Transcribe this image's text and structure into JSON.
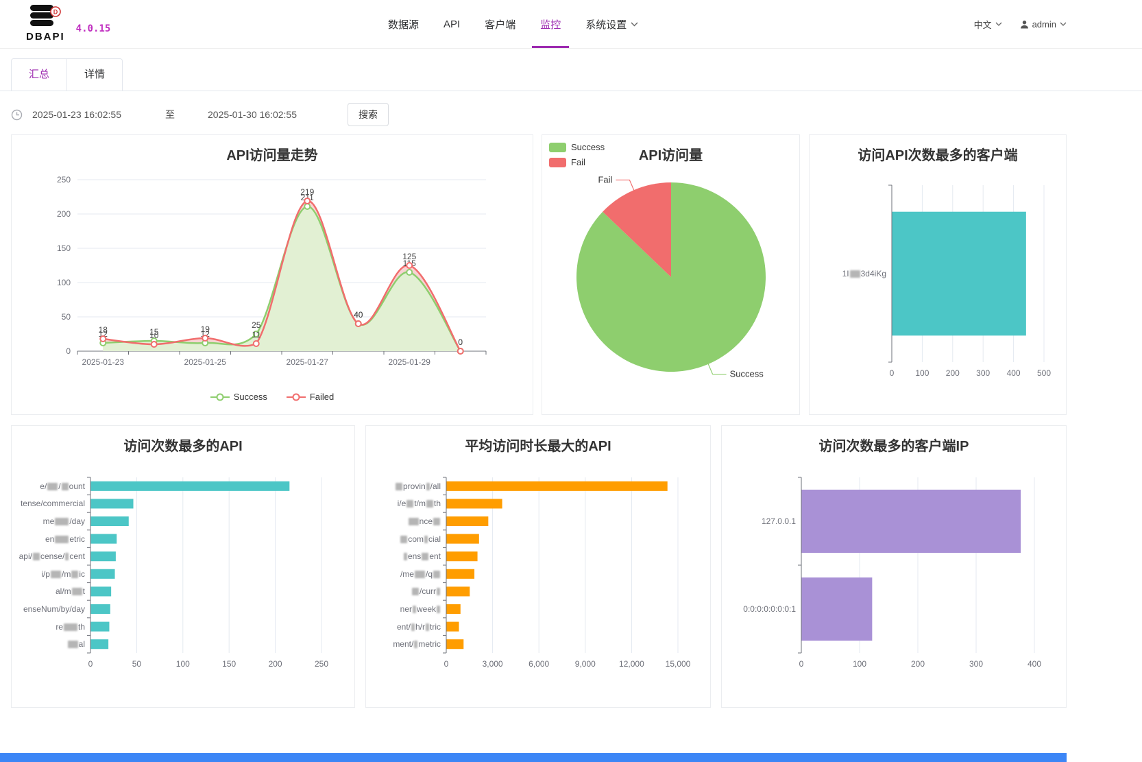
{
  "header": {
    "logo_text": "DBAPI",
    "version": "4.0.15",
    "nav": [
      {
        "label": "数据源"
      },
      {
        "label": "API"
      },
      {
        "label": "客户端"
      },
      {
        "label": "监控"
      },
      {
        "label": "系统设置"
      }
    ],
    "language": "中文",
    "username": "admin"
  },
  "tabs": [
    {
      "label": "汇总"
    },
    {
      "label": "详情"
    }
  ],
  "filter": {
    "start_date": "2025-01-23 16:02:55",
    "separator": "至",
    "end_date": "2025-01-30 16:02:55",
    "search_label": "搜索"
  },
  "colors": {
    "accent": "#9d2bb0",
    "version": "#c02ec0",
    "teal": "#4cc6c6",
    "orange": "#ff9d00",
    "purple": "#a991d6",
    "success_green": "#8ece6e",
    "fail_red": "#f16d6d",
    "bottom_bar": "#3c86f6"
  },
  "chart_data": [
    {
      "type": "line",
      "title": "API访问量走势",
      "x": [
        "2025-01-23",
        "2025-01-24",
        "2025-01-25",
        "2025-01-26",
        "2025-01-27",
        "2025-01-28",
        "2025-01-29",
        "2025-01-30"
      ],
      "x_tick_indices": [
        0,
        2,
        4,
        6
      ],
      "x_tick_labels": [
        "2025-01-23",
        "2025-01-25",
        "2025-01-27",
        "2025-01-29"
      ],
      "series": [
        {
          "name": "Success",
          "color": "#8ece6e",
          "area": "#e2f0d3",
          "values": [
            12,
            15,
            12,
            25,
            211,
            40,
            115,
            0
          ]
        },
        {
          "name": "Failed",
          "color": "#f16d6d",
          "area": "#f8d3d3",
          "values": [
            18,
            10,
            19,
            11,
            219,
            40,
            125,
            0
          ]
        }
      ],
      "ylim": [
        0,
        250
      ],
      "yticks": [
        0,
        50,
        100,
        150,
        200,
        250
      ],
      "legend": [
        "Success",
        "Failed"
      ],
      "grid": true,
      "legend_position": "bottom"
    },
    {
      "type": "pie",
      "title": "API访问量",
      "slices": [
        {
          "name": "Success",
          "value": 440,
          "color": "#8ece6e"
        },
        {
          "name": "Fail",
          "value": 65,
          "color": "#f16d6d"
        }
      ],
      "legend": [
        "Success",
        "Fail"
      ],
      "legend_position": "top-left"
    },
    {
      "type": "bar-h",
      "title": "访问API次数最多的客户端",
      "color": "#4cc6c6",
      "xmax": 500,
      "xticks": [
        {
          "v": 0,
          "label": "0"
        },
        {
          "v": 100,
          "label": "100"
        },
        {
          "v": 200,
          "label": "200"
        },
        {
          "v": 300,
          "label": "300"
        },
        {
          "v": 400,
          "label": "400"
        },
        {
          "v": 500,
          "label": "500"
        }
      ],
      "bars": [
        {
          "value": 440,
          "label": [
            {
              "t": "1I"
            },
            {
              "b": "xxx"
            },
            {
              "t": "3d4iKg"
            }
          ]
        }
      ]
    },
    {
      "type": "bar-h",
      "title": "访问次数最多的API",
      "color": "#4cc6c6",
      "xmax": 250,
      "xticks": [
        {
          "v": 0,
          "label": "0"
        },
        {
          "v": 50,
          "label": "50"
        },
        {
          "v": 100,
          "label": "100"
        },
        {
          "v": 150,
          "label": "150"
        },
        {
          "v": 200,
          "label": "200"
        },
        {
          "v": 250,
          "label": "250"
        }
      ],
      "bars": [
        {
          "value": 215,
          "label": [
            {
              "t": "e/"
            },
            {
              "b": "xxx"
            },
            {
              "t": "/"
            },
            {
              "b": "xx"
            },
            {
              "t": "ount"
            }
          ]
        },
        {
          "value": 46,
          "label": [
            {
              "t": "tense/commercial"
            }
          ]
        },
        {
          "value": 41,
          "label": [
            {
              "t": "me"
            },
            {
              "b": "xxxx"
            },
            {
              "t": "/day"
            }
          ]
        },
        {
          "value": 28,
          "label": [
            {
              "t": "en"
            },
            {
              "b": "xxxx"
            },
            {
              "t": "etric"
            }
          ]
        },
        {
          "value": 27,
          "label": [
            {
              "t": "api/"
            },
            {
              "b": "xx"
            },
            {
              "t": "cense/"
            },
            {
              "b": "x"
            },
            {
              "t": "cent"
            }
          ]
        },
        {
          "value": 26,
          "label": [
            {
              "t": "i/p"
            },
            {
              "b": "xxx"
            },
            {
              "t": "/m"
            },
            {
              "b": "xx"
            },
            {
              "t": "ic"
            }
          ]
        },
        {
          "value": 22,
          "label": [
            {
              "t": "al/m"
            },
            {
              "b": "xxx"
            },
            {
              "t": "t"
            }
          ]
        },
        {
          "value": 21,
          "label": [
            {
              "t": "enseNum/by/day"
            }
          ]
        },
        {
          "value": 20,
          "label": [
            {
              "t": "re"
            },
            {
              "b": "xxxx"
            },
            {
              "t": "th"
            }
          ]
        },
        {
          "value": 19,
          "label": [
            {
              "b": "xxx"
            },
            {
              "t": "al"
            }
          ]
        }
      ]
    },
    {
      "type": "bar-h",
      "title": "平均访问时长最大的API",
      "color": "#ff9d00",
      "xmax": 15000,
      "xticks": [
        {
          "v": 0,
          "label": "0"
        },
        {
          "v": 3000,
          "label": "3,000"
        },
        {
          "v": 6000,
          "label": "6,000"
        },
        {
          "v": 9000,
          "label": "9,000"
        },
        {
          "v": 12000,
          "label": "12,000"
        },
        {
          "v": 15000,
          "label": "15,000"
        }
      ],
      "bars": [
        {
          "value": 14300,
          "label": [
            {
              "b": "xx"
            },
            {
              "t": "provin"
            },
            {
              "b": "x"
            },
            {
              "t": "/all"
            }
          ]
        },
        {
          "value": 3600,
          "label": [
            {
              "t": "i/e"
            },
            {
              "b": "xx"
            },
            {
              "t": "t/m"
            },
            {
              "b": "xx"
            },
            {
              "t": "th"
            }
          ]
        },
        {
          "value": 2700,
          "label": [
            {
              "b": "xxx"
            },
            {
              "t": "nce"
            },
            {
              "b": "xx"
            }
          ]
        },
        {
          "value": 2100,
          "label": [
            {
              "b": "xx"
            },
            {
              "t": "com"
            },
            {
              "b": "x"
            },
            {
              "t": "cial"
            }
          ]
        },
        {
          "value": 2000,
          "label": [
            {
              "b": "x"
            },
            {
              "t": "ens"
            },
            {
              "b": "xx"
            },
            {
              "t": "ent"
            }
          ]
        },
        {
          "value": 1800,
          "label": [
            {
              "t": "/me"
            },
            {
              "b": "xxx"
            },
            {
              "t": "/q"
            },
            {
              "b": "xx"
            }
          ]
        },
        {
          "value": 1500,
          "label": [
            {
              "b": "xx"
            },
            {
              "t": "/curr"
            },
            {
              "b": "x"
            }
          ]
        },
        {
          "value": 900,
          "label": [
            {
              "t": "ner"
            },
            {
              "b": "x"
            },
            {
              "t": "week"
            },
            {
              "b": "x"
            }
          ]
        },
        {
          "value": 800,
          "label": [
            {
              "t": "ent/"
            },
            {
              "b": "x"
            },
            {
              "t": "h/r"
            },
            {
              "b": "x"
            },
            {
              "t": "tric"
            }
          ]
        },
        {
          "value": 1100,
          "label": [
            {
              "t": "ment/"
            },
            {
              "b": "x"
            },
            {
              "t": "metric"
            }
          ]
        }
      ]
    },
    {
      "type": "bar-h",
      "title": "访问次数最多的客户端IP",
      "color": "#a991d6",
      "xmax": 400,
      "xticks": [
        {
          "v": 0,
          "label": "0"
        },
        {
          "v": 100,
          "label": "100"
        },
        {
          "v": 200,
          "label": "200"
        },
        {
          "v": 300,
          "label": "300"
        },
        {
          "v": 400,
          "label": "400"
        }
      ],
      "bars": [
        {
          "value": 376,
          "label": [
            {
              "t": "127.0.0.1"
            }
          ]
        },
        {
          "value": 121,
          "label": [
            {
              "t": "0:0:0:0:0:0:0:1"
            }
          ]
        }
      ]
    }
  ]
}
